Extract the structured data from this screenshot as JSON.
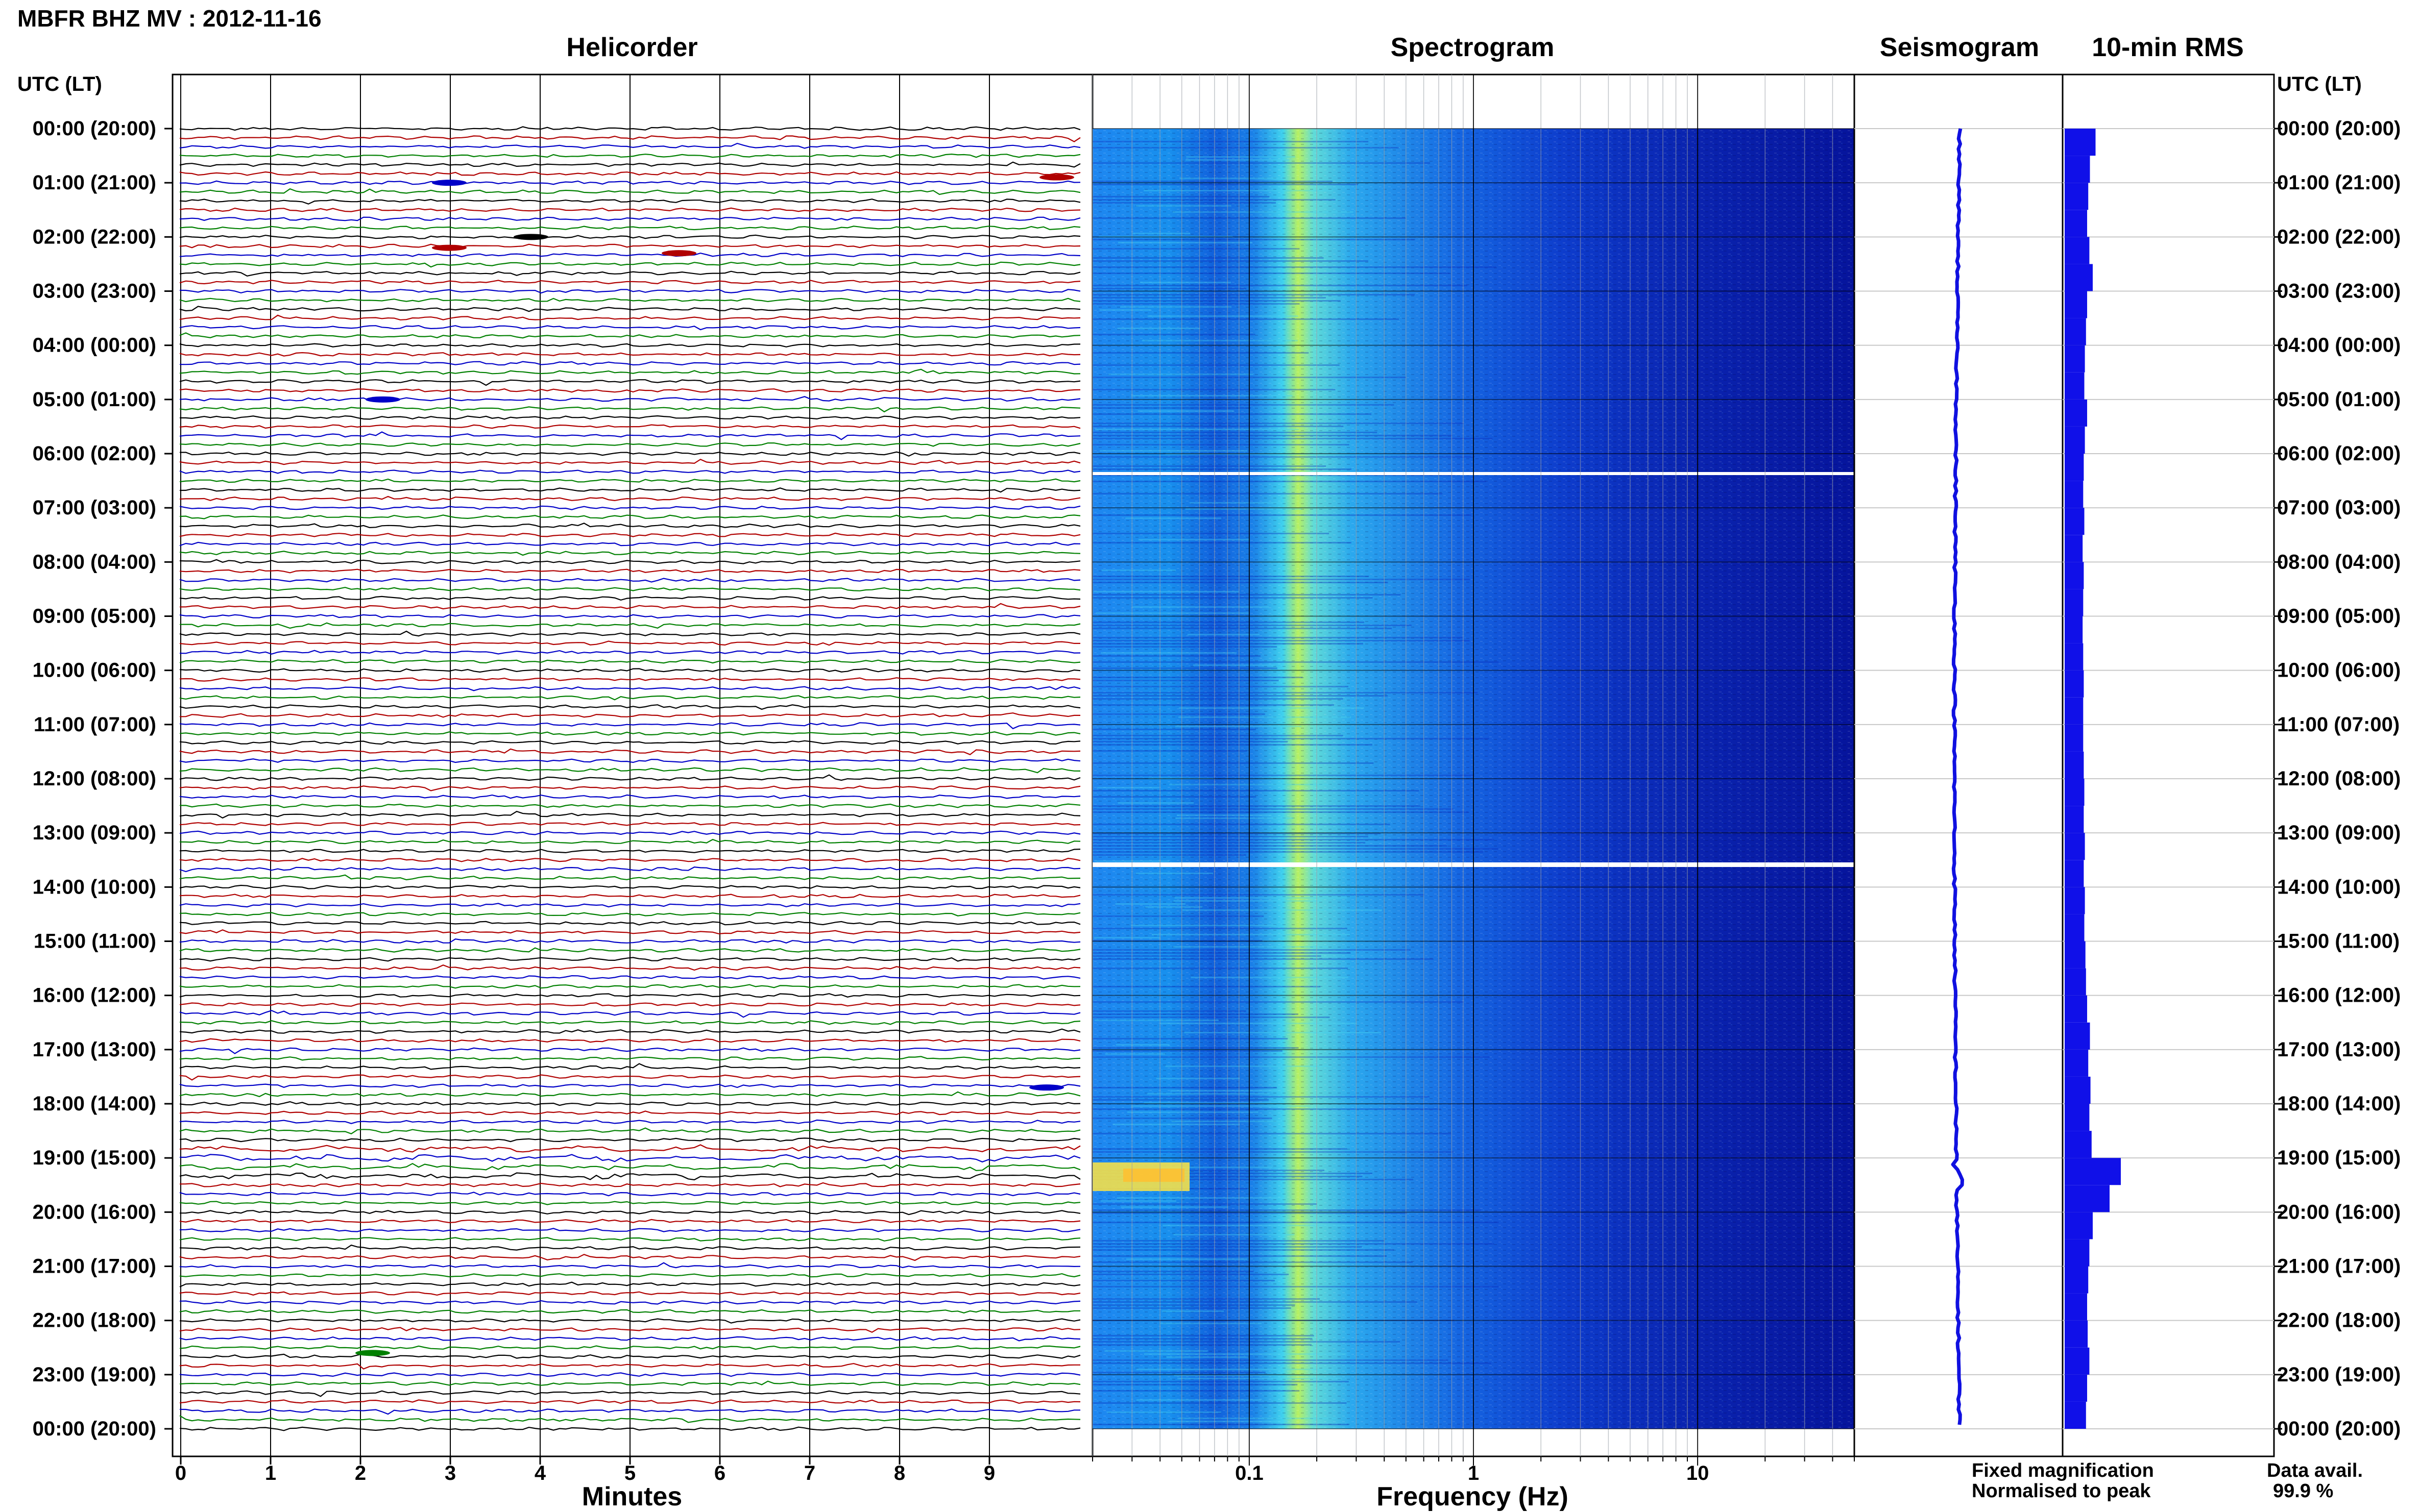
{
  "header": {
    "title": "MBFR BHZ MV : 2012-11-16"
  },
  "panels": {
    "helicorder": "Helicorder",
    "spectrogram": "Spectrogram",
    "seismogram": "Seismogram",
    "rms": "10-min RMS"
  },
  "time_axis": {
    "label": "UTC (LT)",
    "ticks": [
      "00:00 (20:00)",
      "01:00 (21:00)",
      "02:00 (22:00)",
      "03:00 (23:00)",
      "04:00 (00:00)",
      "05:00 (01:00)",
      "06:00 (02:00)",
      "07:00 (03:00)",
      "08:00 (04:00)",
      "09:00 (05:00)",
      "10:00 (06:00)",
      "11:00 (07:00)",
      "12:00 (08:00)",
      "13:00 (09:00)",
      "14:00 (10:00)",
      "15:00 (11:00)",
      "16:00 (12:00)",
      "17:00 (13:00)",
      "18:00 (14:00)",
      "19:00 (15:00)",
      "20:00 (16:00)",
      "21:00 (17:00)",
      "22:00 (18:00)",
      "23:00 (19:00)",
      "00:00 (20:00)"
    ]
  },
  "helicorder_axis": {
    "label": "Minutes",
    "ticks": [
      "0",
      "1",
      "2",
      "3",
      "4",
      "5",
      "6",
      "7",
      "8",
      "9"
    ],
    "trace_colors": [
      "#000000",
      "#b00000",
      "#0000c8",
      "#008000"
    ]
  },
  "spectrogram_axis": {
    "label": "Frequency (Hz)",
    "ticks": [
      "0.1",
      "1",
      "10"
    ],
    "tick_values": [
      0.1,
      1,
      10
    ],
    "fmin": 0.02,
    "fmax": 50
  },
  "legend": {
    "fixed": "Fixed magnification",
    "fixed_color": "#0000ff",
    "normalised": "Normalised to peak",
    "normalised_color": "#ff0000",
    "avail_label": "Data avail.",
    "avail_value": "99.9 %"
  },
  "chart_data": {
    "type": "heatmap",
    "title": "MBFR BHZ MV : 2012-11-16",
    "y_ticks": [
      "00:00 (20:00)",
      "01:00 (21:00)",
      "02:00 (22:00)",
      "03:00 (23:00)",
      "04:00 (00:00)",
      "05:00 (01:00)",
      "06:00 (02:00)",
      "07:00 (03:00)",
      "08:00 (04:00)",
      "09:00 (05:00)",
      "10:00 (06:00)",
      "11:00 (07:00)",
      "12:00 (08:00)",
      "13:00 (09:00)",
      "14:00 (10:00)",
      "15:00 (11:00)",
      "16:00 (12:00)",
      "17:00 (13:00)",
      "18:00 (14:00)",
      "19:00 (15:00)",
      "20:00 (16:00)",
      "21:00 (17:00)",
      "22:00 (18:00)",
      "23:00 (19:00)",
      "00:00 (20:00)"
    ],
    "helicorder_minutes": [
      0,
      9
    ],
    "spectrogram_freq_hz": [
      0.02,
      50
    ],
    "spectral_peak_hz": 0.2,
    "data_gaps_utc_hours": [
      6.3,
      13.6
    ],
    "rms_10min": {
      "hours": [
        0.0,
        0.5,
        1.0,
        1.5,
        2.0,
        2.5,
        3.0,
        3.5,
        4.0,
        4.5,
        5.0,
        5.5,
        6.0,
        6.5,
        7.0,
        7.5,
        8.0,
        8.5,
        9.0,
        9.5,
        10.0,
        10.5,
        11.0,
        11.5,
        12.0,
        12.5,
        13.0,
        13.5,
        14.0,
        14.5,
        15.0,
        15.5,
        16.0,
        16.5,
        17.0,
        17.5,
        18.0,
        18.5,
        19.0,
        19.5,
        20.0,
        20.5,
        21.0,
        21.5,
        22.0,
        22.5,
        23.0,
        23.5
      ],
      "values": [
        0.55,
        0.45,
        0.42,
        0.4,
        0.44,
        0.5,
        0.4,
        0.38,
        0.36,
        0.35,
        0.4,
        0.36,
        0.34,
        0.33,
        0.35,
        0.32,
        0.34,
        0.33,
        0.32,
        0.33,
        0.34,
        0.33,
        0.33,
        0.34,
        0.35,
        0.34,
        0.36,
        0.34,
        0.36,
        0.35,
        0.37,
        0.38,
        0.4,
        0.45,
        0.42,
        0.46,
        0.44,
        0.48,
        1.0,
        0.8,
        0.5,
        0.44,
        0.42,
        0.4,
        0.41,
        0.44,
        0.4,
        0.38
      ]
    }
  }
}
